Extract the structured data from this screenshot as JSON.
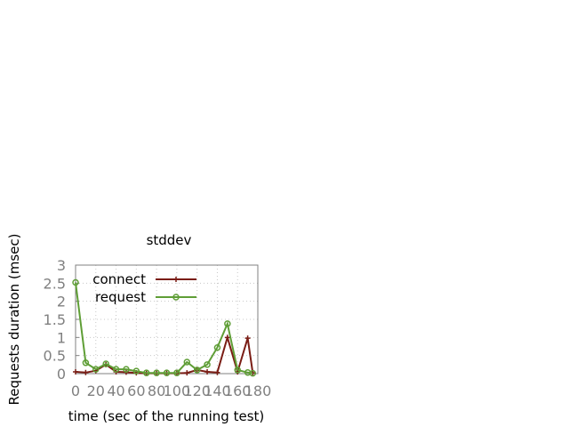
{
  "chart_data": {
    "type": "line",
    "title": "stddev",
    "xlabel": "time (sec of the running test)",
    "ylabel": "Requests duration (msec)",
    "xlim": [
      0,
      180
    ],
    "ylim": [
      0,
      3
    ],
    "xticks": [
      "0",
      "20",
      "40",
      "60",
      "80",
      "100",
      "120",
      "140",
      "160",
      "180"
    ],
    "yticks": [
      "0",
      "0.5",
      "1",
      "1.5",
      "2",
      "2.5",
      "3"
    ],
    "grid": true,
    "legend_position": "top-left",
    "series": [
      {
        "name": "connect",
        "color": "#7a1d15",
        "marker": "plus",
        "x": [
          0,
          10,
          20,
          30,
          40,
          50,
          60,
          70,
          80,
          90,
          100,
          110,
          120,
          130,
          140,
          150,
          160,
          170,
          175
        ],
        "y": [
          0.05,
          0.03,
          0.08,
          0.25,
          0.05,
          0.04,
          0.02,
          0.01,
          0.01,
          0.01,
          0.01,
          0.02,
          0.1,
          0.05,
          0.03,
          1.0,
          0.05,
          0.98,
          0.02
        ]
      },
      {
        "name": "request",
        "color": "#5f9e36",
        "marker": "circle",
        "x": [
          0,
          10,
          20,
          30,
          40,
          50,
          60,
          70,
          80,
          90,
          100,
          110,
          120,
          130,
          140,
          150,
          160,
          170,
          175
        ],
        "y": [
          2.52,
          0.3,
          0.12,
          0.27,
          0.12,
          0.12,
          0.07,
          0.02,
          0.02,
          0.02,
          0.02,
          0.32,
          0.1,
          0.25,
          0.72,
          1.38,
          0.1,
          0.03,
          0.01
        ]
      }
    ]
  }
}
